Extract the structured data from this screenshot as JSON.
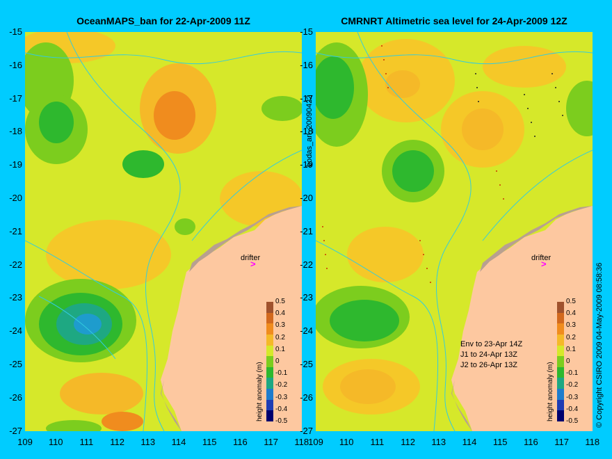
{
  "left_title": "OceanMAPS_ban for 22-Apr-2009 11Z",
  "right_title": "CMRNRT Altimetric sea level  for 24-Apr-2009 12Z",
  "side_label": "bodas_an_20090422",
  "copyright": "© Copyright CSIRO 2009  04-May-2009 08:58:36",
  "drifter_label": "drifter",
  "y_ticks": [
    "-15",
    "-16",
    "-17",
    "-18",
    "-19",
    "-20",
    "-21",
    "-22",
    "-23",
    "-24",
    "-25",
    "-26",
    "-27"
  ],
  "x_ticks": [
    "109",
    "110",
    "111",
    "112",
    "113",
    "114",
    "115",
    "116",
    "117",
    "118"
  ],
  "colorbar": {
    "title": "height anomaly (m)",
    "ticks": [
      "0.5",
      "0.4",
      "0.3",
      "0.2",
      "0.1",
      "0",
      "-0.1",
      "-0.2",
      "-0.3",
      "-0.4",
      "-0.5"
    ],
    "colors": [
      "#a0522d",
      "#d2691e",
      "#f08c1e",
      "#f5b928",
      "#d6e82a",
      "#7ccd1e",
      "#2eb82e",
      "#1ea882",
      "#1e7ccd",
      "#1e3cb4",
      "#00006e"
    ]
  },
  "legend": {
    "line1": "Env to 23-Apr 14Z",
    "line2": "J1 to 24-Apr 13Z",
    "line3": "J2 to 26-Apr 13Z"
  },
  "colors": {
    "background": "#00ccff",
    "land": "#fdc8a0",
    "coast_detail": "#b8a090",
    "contour": "#33ccdd",
    "drifter": "#ff00ff"
  }
}
